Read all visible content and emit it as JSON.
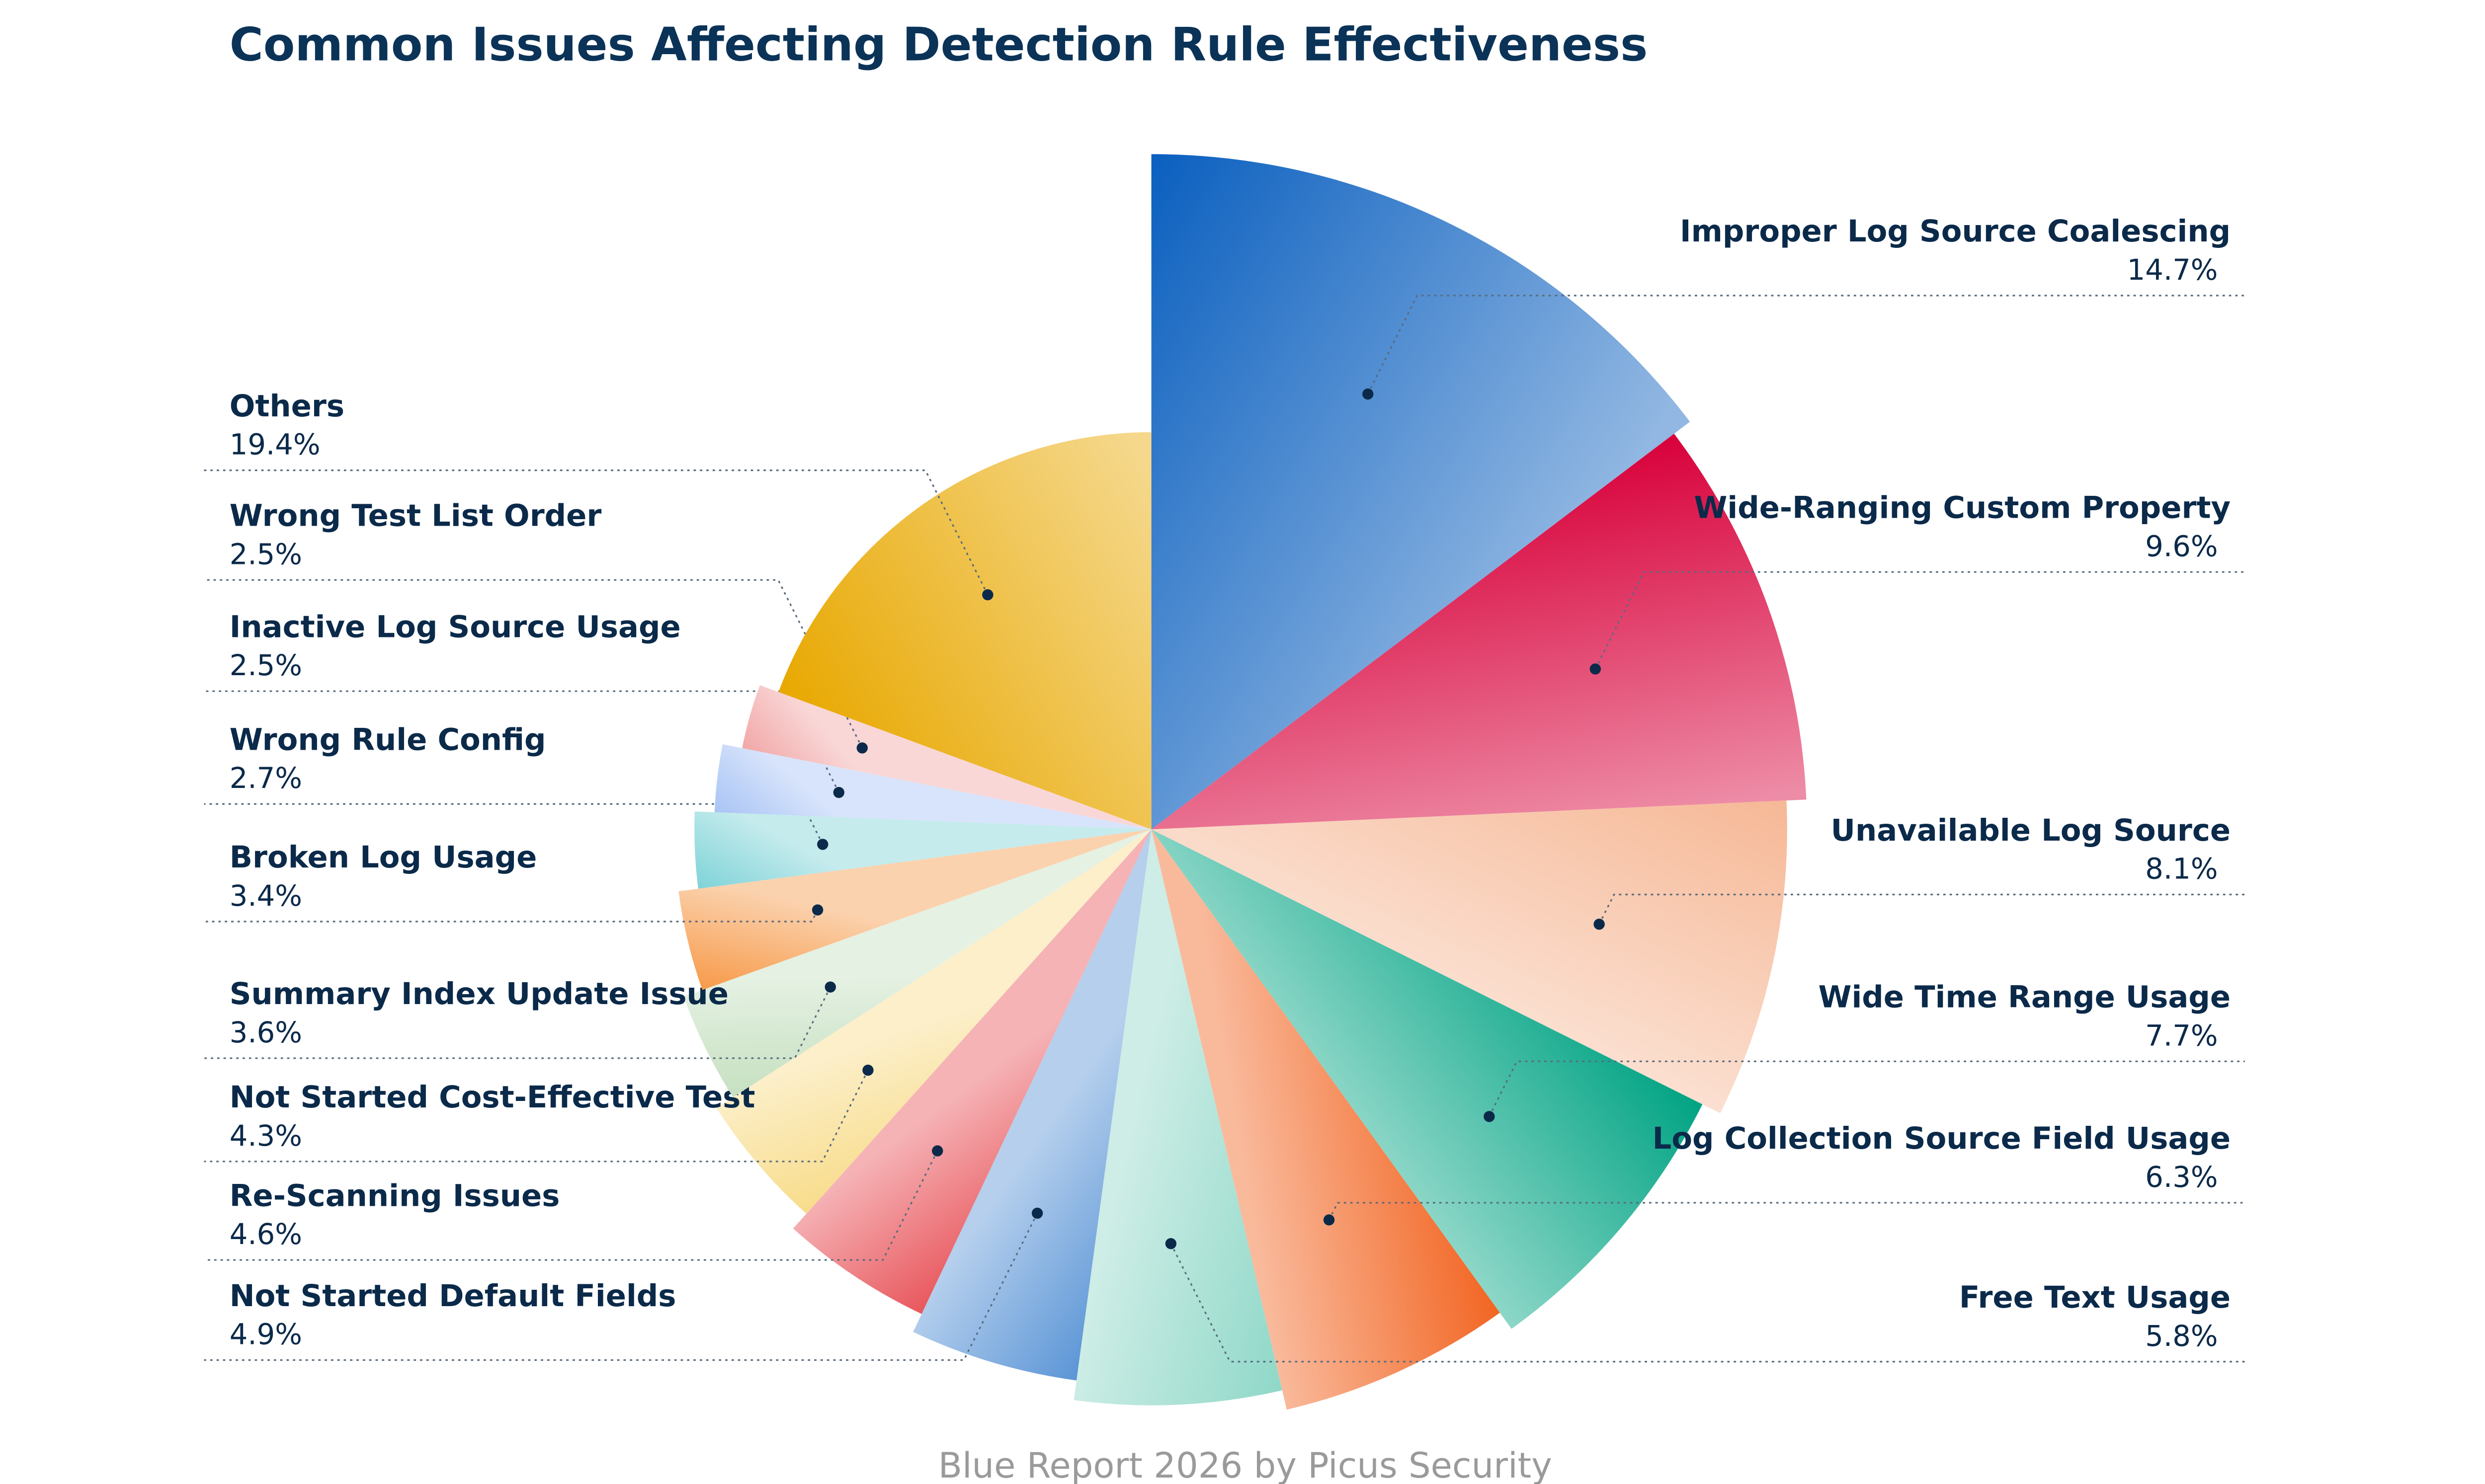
{
  "chart_data": {
    "type": "pie",
    "title": "Common Issues Affecting Detection Rule Effectiveness",
    "categories": [
      "Improper Log Source Coalescing",
      "Wide-Ranging Custom Property",
      "Unavailable Log Source",
      "Wide Time Range Usage",
      "Log Collection  Source Field Usage",
      "Free Text Usage",
      "Not Started Default Fields",
      "Re-Scanning Issues",
      "Not Started Cost-Effective Test",
      "Summary Index Update Issue",
      "Broken Log Usage",
      "Wrong Rule Config",
      "Inactive Log Source Usage",
      "Wrong Test List Order",
      "Others"
    ],
    "values": [
      14.7,
      9.6,
      8.1,
      7.7,
      6.3,
      5.8,
      4.9,
      4.6,
      4.3,
      3.6,
      3.4,
      2.7,
      2.5,
      2.5,
      19.4
    ],
    "value_labels": [
      "14.7%",
      "9.6%",
      "8.1%",
      "7.7%",
      "6.3%",
      "5.8%",
      "4.9%",
      "4.6%",
      "4.3%",
      "3.6%",
      "3.4%",
      "2.7%",
      "2.5%",
      "2.5%",
      "19.4%"
    ],
    "colors": [
      "#0a5fbf",
      "#d8003a",
      "#f6b896",
      "#00a383",
      "#f26522",
      "#8fd8c8",
      "#5b95d6",
      "#e8575d",
      "#f8dc8a",
      "#c6e0c0",
      "#f79a4a",
      "#7fd3d8",
      "#a9c4f5",
      "#f2a7a7",
      "#e8a800"
    ],
    "footer": "Blue Report 2026 by Picus Security"
  }
}
